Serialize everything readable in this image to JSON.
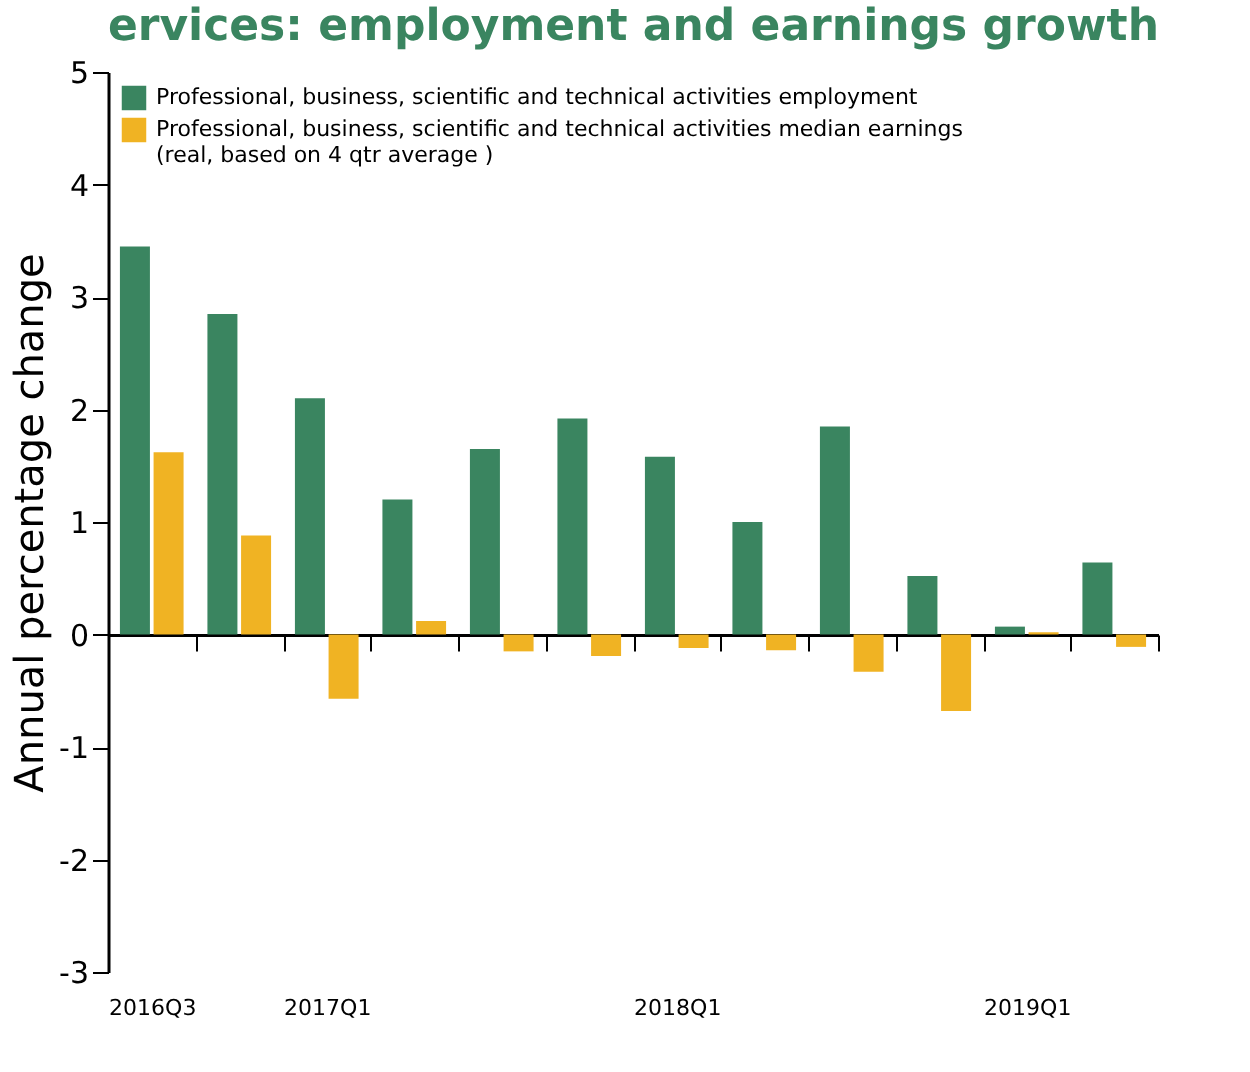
{
  "chart_data": {
    "type": "bar",
    "title": "ervices: employment and earnings growth",
    "ylabel": "Annual percentage change",
    "categories": [
      "2016Q3",
      null,
      "2017Q1",
      null,
      null,
      null,
      "2018Q1",
      null,
      null,
      null,
      "2019Q1",
      null
    ],
    "series": [
      {
        "name": "Professional, business, scientific and technical activities employment",
        "color": "#3a8560",
        "values": [
          3.45,
          2.85,
          2.1,
          1.2,
          1.65,
          1.92,
          1.58,
          1.0,
          1.85,
          0.52,
          0.07,
          0.64
        ]
      },
      {
        "name": "Professional, business, scientific and technical activities median earnings\n(real, based on 4 qtr average )",
        "color": "#f0b323",
        "values": [
          1.62,
          0.88,
          -0.57,
          0.12,
          -0.15,
          -0.19,
          -0.12,
          -0.14,
          -0.33,
          -0.68,
          0.02,
          -0.11
        ]
      }
    ],
    "ylim": [
      -3,
      5
    ],
    "yticks": [
      -3,
      -2,
      -1,
      0,
      1,
      2,
      3,
      4,
      5
    ],
    "legend": "top left"
  }
}
